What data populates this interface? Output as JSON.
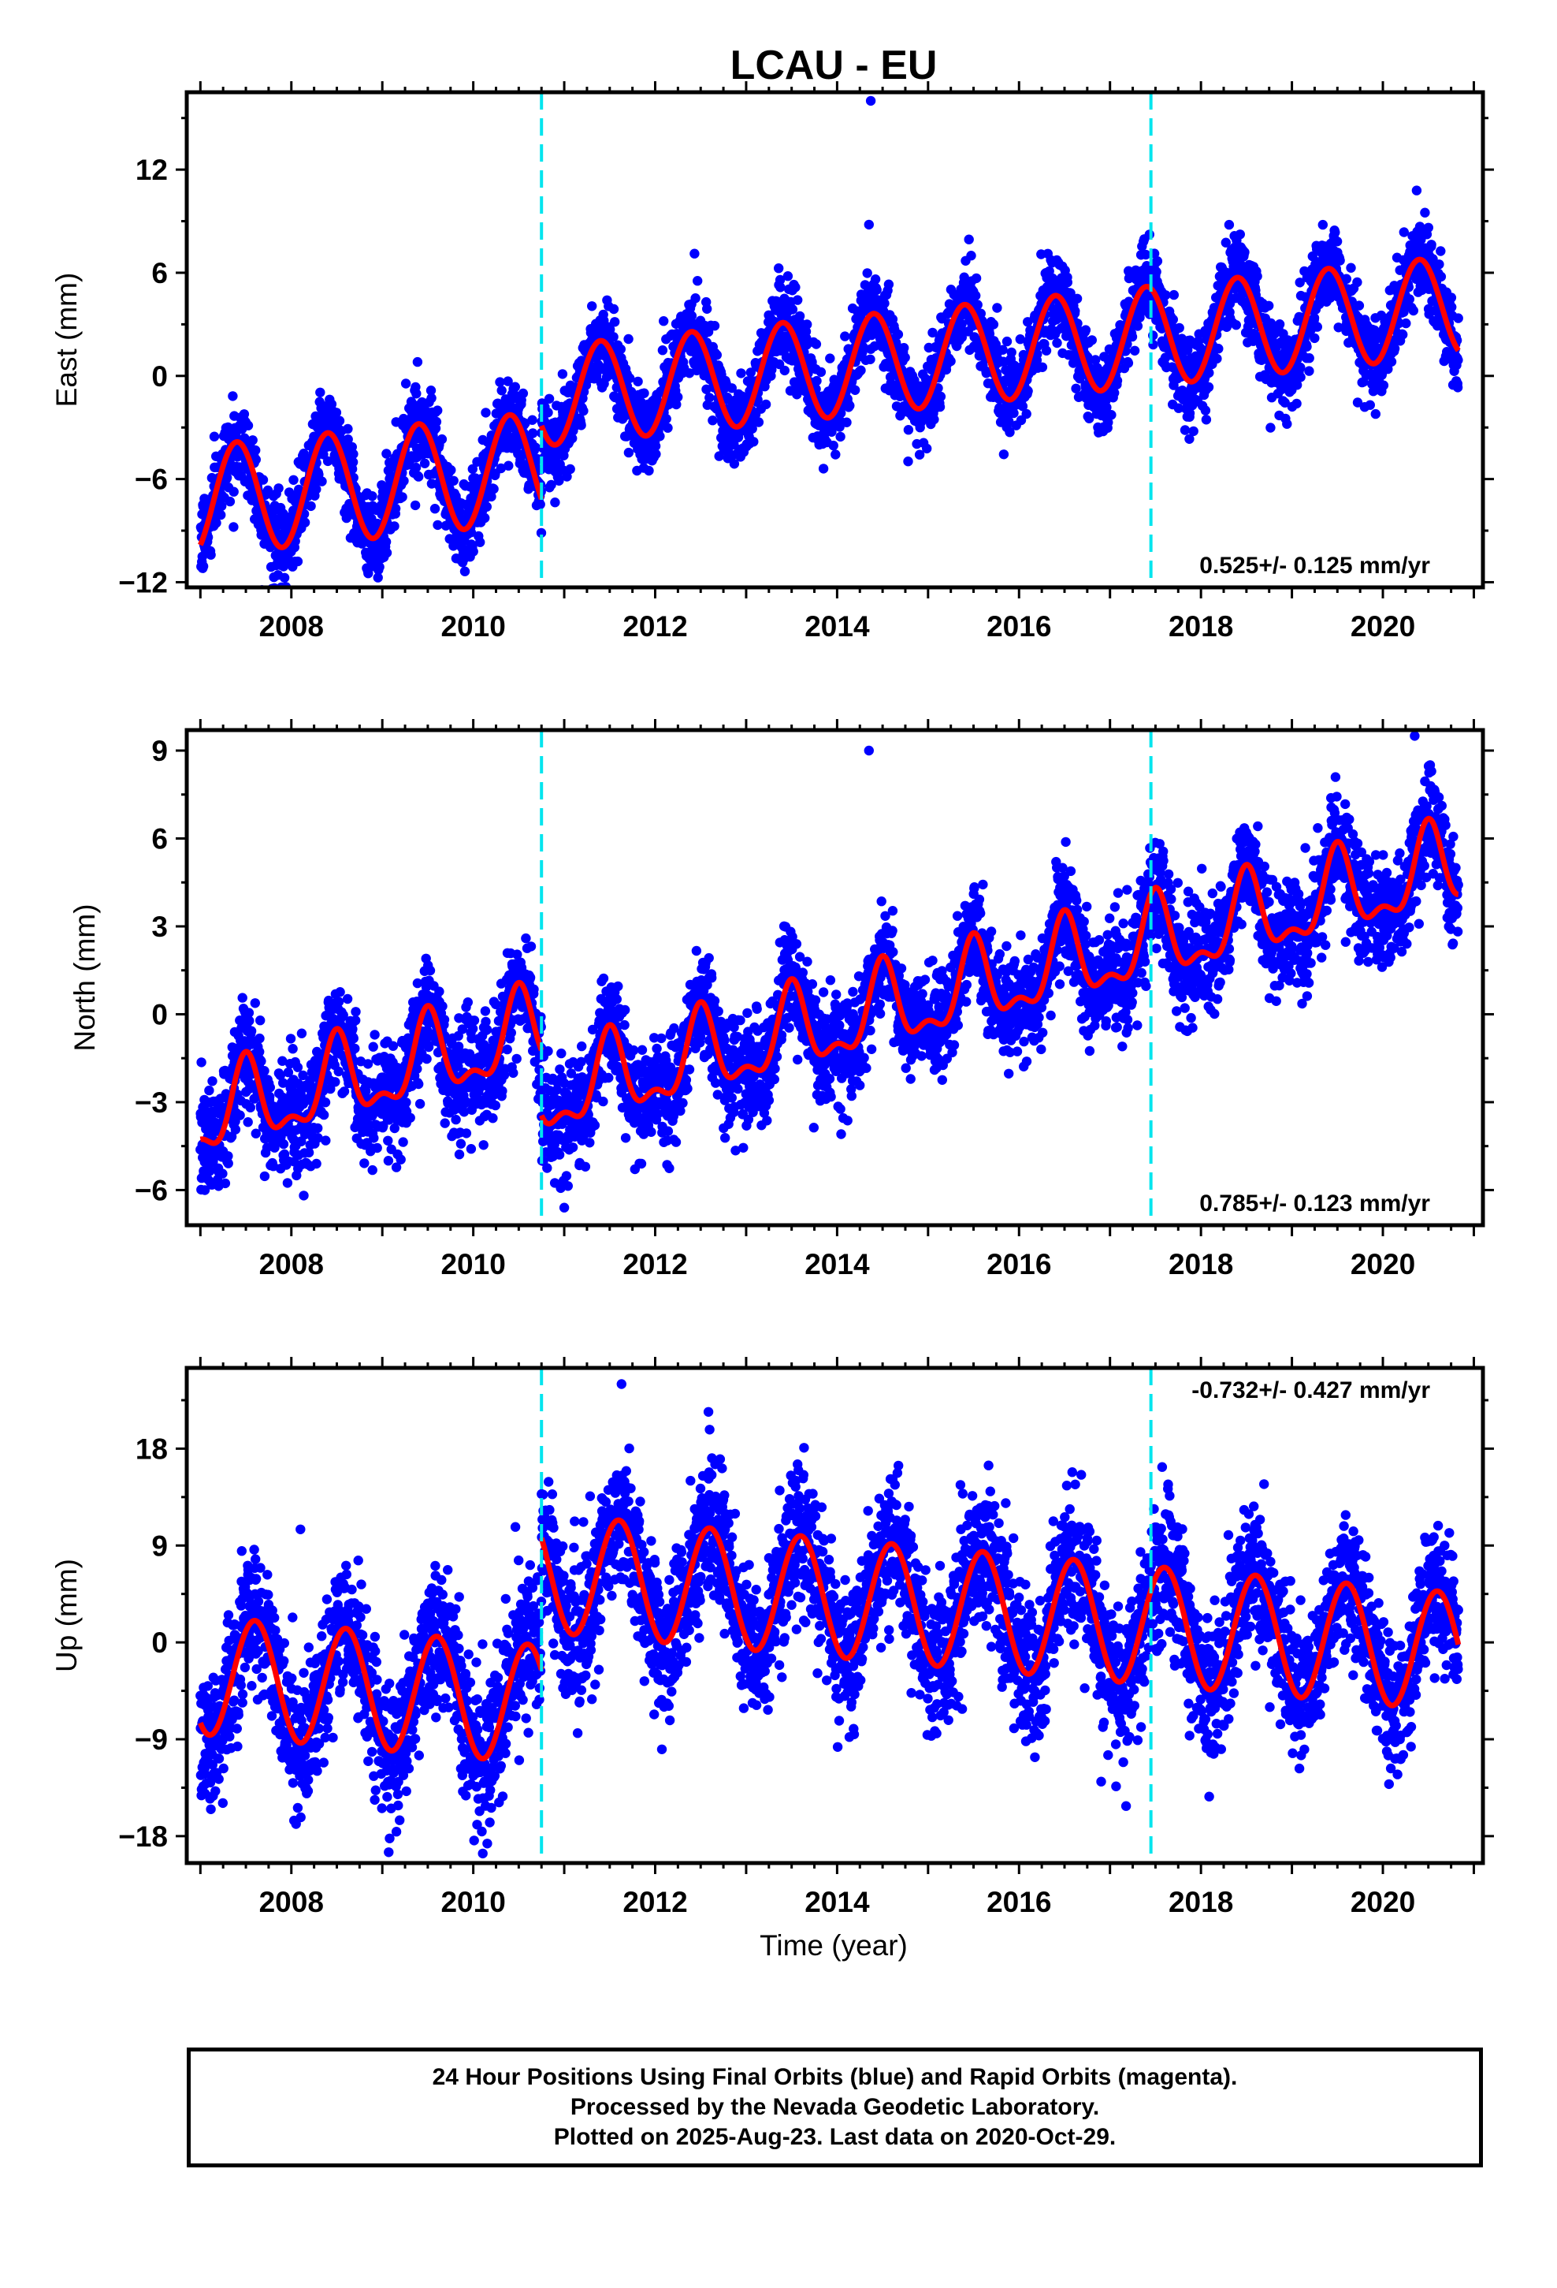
{
  "chart_data": [
    {
      "type": "scatter",
      "title": "LCAU - EU",
      "xlabel": "",
      "ylabel": "East (mm)",
      "xlim": [
        2006.85,
        2021.1
      ],
      "ylim": [
        -12.3,
        16.5
      ],
      "xticks": [
        2008,
        2010,
        2012,
        2014,
        2016,
        2018,
        2020
      ],
      "xtick_labels": [
        "2008",
        "2010",
        "2012",
        "2014",
        "2016",
        "2018",
        "2020"
      ],
      "yticks": [
        -12,
        -6,
        0,
        6,
        12
      ],
      "ytick_labels": [
        "-12",
        "-6",
        "0",
        "6",
        "12"
      ],
      "rate_label": "0.525+/- 0.125 mm/yr",
      "rate_position": "bottom-right",
      "steps_at": [
        2010.75,
        2017.45
      ],
      "series": [
        {
          "marker": "points",
          "color": "#0000ff",
          "start": 2007.0,
          "end": 2020.83,
          "model": {
            "segments": [
              {
                "from": 2007.0,
                "to": 2010.75,
                "base": -6.2,
                "trend": 0.525,
                "ref": 2009.0,
                "amp": 3.2,
                "phase": 2007.4
              },
              {
                "from": 2010.75,
                "to": 2020.83,
                "base": 1.3,
                "trend": 0.525,
                "ref": 2015.5,
                "amp": 2.9,
                "phase": 2011.4
              }
            ]
          },
          "scatter_sd": 1.2,
          "outliers": [
            [
              2014.37,
              16.0
            ],
            [
              2014.35,
              8.8
            ]
          ]
        },
        {
          "marker": "line",
          "color": "#ff0000",
          "fit": true
        }
      ]
    },
    {
      "type": "scatter",
      "title": "",
      "xlabel": "",
      "ylabel": "North (mm)",
      "xlim": [
        2006.85,
        2021.1
      ],
      "ylim": [
        -7.2,
        9.7
      ],
      "xticks": [
        2008,
        2010,
        2012,
        2014,
        2016,
        2018,
        2020
      ],
      "xtick_labels": [
        "2008",
        "2010",
        "2012",
        "2014",
        "2016",
        "2018",
        "2020"
      ],
      "yticks": [
        -6,
        -3,
        0,
        3,
        6,
        9
      ],
      "ytick_labels": [
        "-6",
        "-3",
        "0",
        "3",
        "6",
        "9"
      ],
      "rate_label": "0.785+/- 0.123 mm/yr",
      "rate_position": "bottom-right",
      "steps_at": [
        2010.75,
        2017.45
      ],
      "series": [
        {
          "marker": "points",
          "color": "#0000ff",
          "start": 2007.0,
          "end": 2020.83,
          "model": {
            "segments": [
              {
                "from": 2007.0,
                "to": 2010.75,
                "base": -2.0,
                "trend": 0.785,
                "ref": 2009.0,
                "amp": 1.3,
                "phase": 2007.5,
                "amp2": 0.6
              },
              {
                "from": 2010.75,
                "to": 2017.45,
                "base": -0.3,
                "trend": 0.785,
                "ref": 2014.0,
                "amp": 1.3,
                "phase": 2011.5,
                "amp2": 0.6
              },
              {
                "from": 2017.45,
                "to": 2020.83,
                "base": 3.6,
                "trend": 0.785,
                "ref": 2019.0,
                "amp": 1.3,
                "phase": 2017.5,
                "amp2": 0.6
              }
            ]
          },
          "scatter_sd": 0.9,
          "outliers": [
            [
              2014.35,
              9.0
            ],
            [
              2020.35,
              9.5
            ],
            [
              2011.0,
              -6.6
            ]
          ]
        },
        {
          "marker": "line",
          "color": "#ff0000",
          "fit": true
        }
      ]
    },
    {
      "type": "scatter",
      "title": "",
      "xlabel": "Time (year)",
      "ylabel": "Up (mm)",
      "xlim": [
        2006.85,
        2021.1
      ],
      "ylim": [
        -20.5,
        25.5
      ],
      "xticks": [
        2008,
        2010,
        2012,
        2014,
        2016,
        2018,
        2020
      ],
      "xtick_labels": [
        "2008",
        "2010",
        "2012",
        "2014",
        "2016",
        "2018",
        "2020"
      ],
      "yticks": [
        -18,
        -9,
        0,
        9,
        18
      ],
      "ytick_labels": [
        "-18",
        "-9",
        "0",
        "9",
        "18"
      ],
      "rate_label": "-0.732+/- 0.427 mm/yr",
      "rate_position": "top-right",
      "steps_at": [
        2010.75,
        2017.45
      ],
      "series": [
        {
          "marker": "points",
          "color": "#0000ff",
          "start": 2007.0,
          "end": 2020.83,
          "model": {
            "segments": [
              {
                "from": 2007.0,
                "to": 2010.75,
                "base": -4.5,
                "trend": -0.732,
                "ref": 2009.0,
                "amp": 5.5,
                "phase": 2007.6
              },
              {
                "from": 2010.75,
                "to": 2020.83,
                "base": 3.0,
                "trend": -0.732,
                "ref": 2015.5,
                "amp": 5.5,
                "phase": 2011.6
              }
            ]
          },
          "scatter_sd": 3.3,
          "outliers": [
            [
              2011.63,
              24.0
            ],
            [
              2008.1,
              10.5
            ],
            [
              2009.07,
              -19.5
            ]
          ]
        },
        {
          "marker": "line",
          "color": "#ff0000",
          "fit": true
        }
      ]
    }
  ],
  "colors": {
    "points": "#0000ff",
    "fit": "#ff0000",
    "step_line": "#00e5ee",
    "frame": "#000000"
  },
  "footer": {
    "line1": "24 Hour Positions Using Final Orbits (blue) and Rapid Orbits (magenta).",
    "line2": "Processed by the Nevada Geodetic Laboratory.",
    "line3": "Plotted on 2025-Aug-23. Last data on 2020-Oct-29."
  }
}
